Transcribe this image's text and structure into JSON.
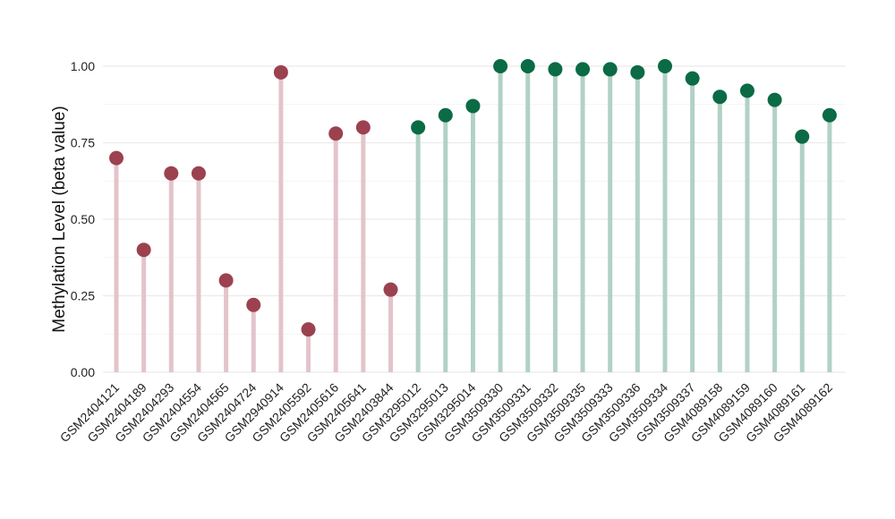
{
  "chart_data": {
    "type": "lollipop",
    "title": "",
    "xlabel": "",
    "ylabel": "Methylation Level (beta value)",
    "ylim": [
      0,
      1
    ],
    "yticks": [
      "0.00",
      "0.25",
      "0.50",
      "0.75",
      "1.00"
    ],
    "ytick_values": [
      0,
      0.25,
      0.5,
      0.75,
      1.0
    ],
    "grid": true,
    "colors": {
      "group1_point": "#9c4150",
      "group1_stem": "#e3c4cb",
      "group2_point": "#0a6b45",
      "group2_stem": "#b2d1c5",
      "grid": "#ebebeb"
    },
    "points": [
      {
        "label": "GSM2404121",
        "value": 0.7,
        "group": 1
      },
      {
        "label": "GSM2404189",
        "value": 0.4,
        "group": 1
      },
      {
        "label": "GSM2404293",
        "value": 0.65,
        "group": 1
      },
      {
        "label": "GSM2404554",
        "value": 0.65,
        "group": 1
      },
      {
        "label": "GSM2404565",
        "value": 0.3,
        "group": 1
      },
      {
        "label": "GSM2404724",
        "value": 0.22,
        "group": 1
      },
      {
        "label": "GSM2940914",
        "value": 0.98,
        "group": 1
      },
      {
        "label": "GSM2405592",
        "value": 0.14,
        "group": 1
      },
      {
        "label": "GSM2405616",
        "value": 0.78,
        "group": 1
      },
      {
        "label": "GSM2405641",
        "value": 0.8,
        "group": 1
      },
      {
        "label": "GSM2403844",
        "value": 0.27,
        "group": 1
      },
      {
        "label": "GSM3295012",
        "value": 0.8,
        "group": 2
      },
      {
        "label": "GSM3295013",
        "value": 0.84,
        "group": 2
      },
      {
        "label": "GSM3295014",
        "value": 0.87,
        "group": 2
      },
      {
        "label": "GSM3509330",
        "value": 1.0,
        "group": 2
      },
      {
        "label": "GSM3509331",
        "value": 1.0,
        "group": 2
      },
      {
        "label": "GSM3509332",
        "value": 0.99,
        "group": 2
      },
      {
        "label": "GSM3509335",
        "value": 0.99,
        "group": 2
      },
      {
        "label": "GSM3509333",
        "value": 0.99,
        "group": 2
      },
      {
        "label": "GSM3509336",
        "value": 0.98,
        "group": 2
      },
      {
        "label": "GSM3509334",
        "value": 1.0,
        "group": 2
      },
      {
        "label": "GSM3509337",
        "value": 0.96,
        "group": 2
      },
      {
        "label": "GSM4089158",
        "value": 0.9,
        "group": 2
      },
      {
        "label": "GSM4089159",
        "value": 0.92,
        "group": 2
      },
      {
        "label": "GSM4089160",
        "value": 0.89,
        "group": 2
      },
      {
        "label": "GSM4089161",
        "value": 0.77,
        "group": 2
      },
      {
        "label": "GSM4089162",
        "value": 0.84,
        "group": 2
      }
    ]
  }
}
